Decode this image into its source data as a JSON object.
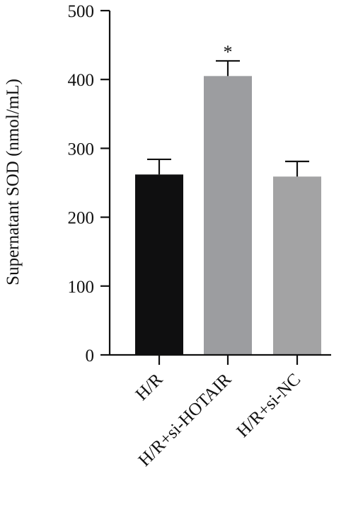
{
  "chart_data": {
    "type": "bar",
    "title": "",
    "xlabel": "",
    "ylabel": "Supernatant SOD (nmol/mL)",
    "ylim": [
      0,
      500
    ],
    "yticks": [
      0,
      100,
      200,
      300,
      400,
      500
    ],
    "grid": false,
    "legend": "none",
    "categories": [
      "H/R",
      "H/R+si-HOTAIR",
      "H/R+si-NC"
    ],
    "values": [
      262,
      405,
      259
    ],
    "errors": [
      22,
      22,
      22
    ],
    "annotations": [
      "",
      "*",
      ""
    ],
    "colors": [
      "#0f0f10",
      "#9c9da0",
      "#a3a3a4"
    ]
  }
}
